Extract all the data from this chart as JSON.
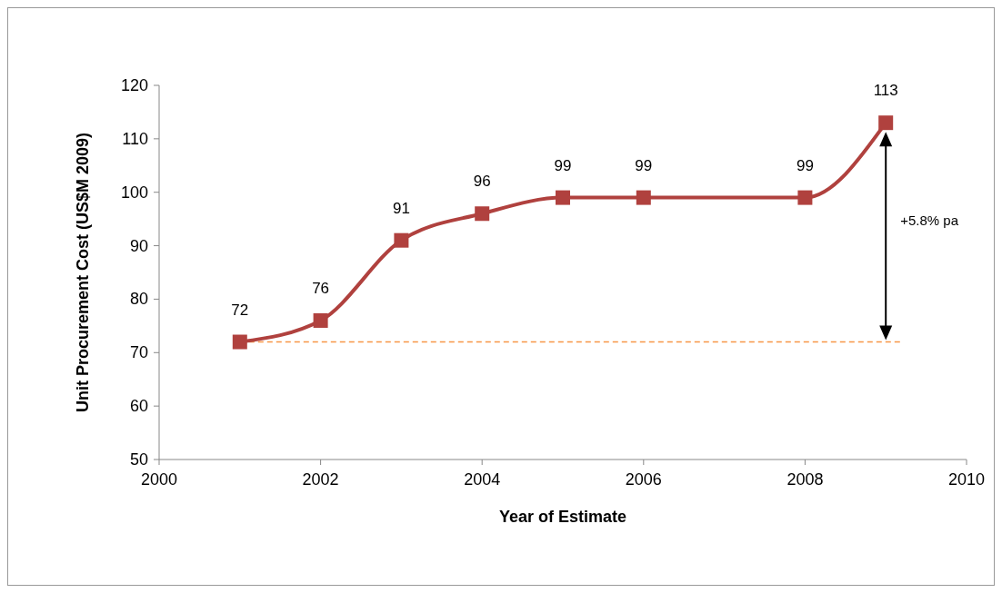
{
  "chart_data": {
    "type": "line",
    "xlabel": "Year of Estimate",
    "ylabel": "Unit Procurement Cost (US$M  2009)",
    "x": [
      2001,
      2002,
      2003,
      2004,
      2005,
      2006,
      2008,
      2009
    ],
    "series": [
      {
        "color": "#b0413e",
        "values": [
          72,
          76,
          91,
          96,
          99,
          99,
          99,
          113
        ]
      }
    ],
    "xlim": [
      2000,
      2010
    ],
    "xticks": [
      2000,
      2002,
      2004,
      2006,
      2008,
      2010
    ],
    "ylim": [
      50,
      120
    ],
    "yticks": [
      50,
      60,
      70,
      80,
      90,
      100,
      110,
      120
    ],
    "marker": "square",
    "line_style": "solid",
    "data_labels": true,
    "grid": false,
    "ref_lines": [
      {
        "axis": "y",
        "value": 72,
        "color": "#f79646",
        "line_style": "dashed"
      }
    ],
    "annotations": [
      "+5.8% pa"
    ]
  }
}
